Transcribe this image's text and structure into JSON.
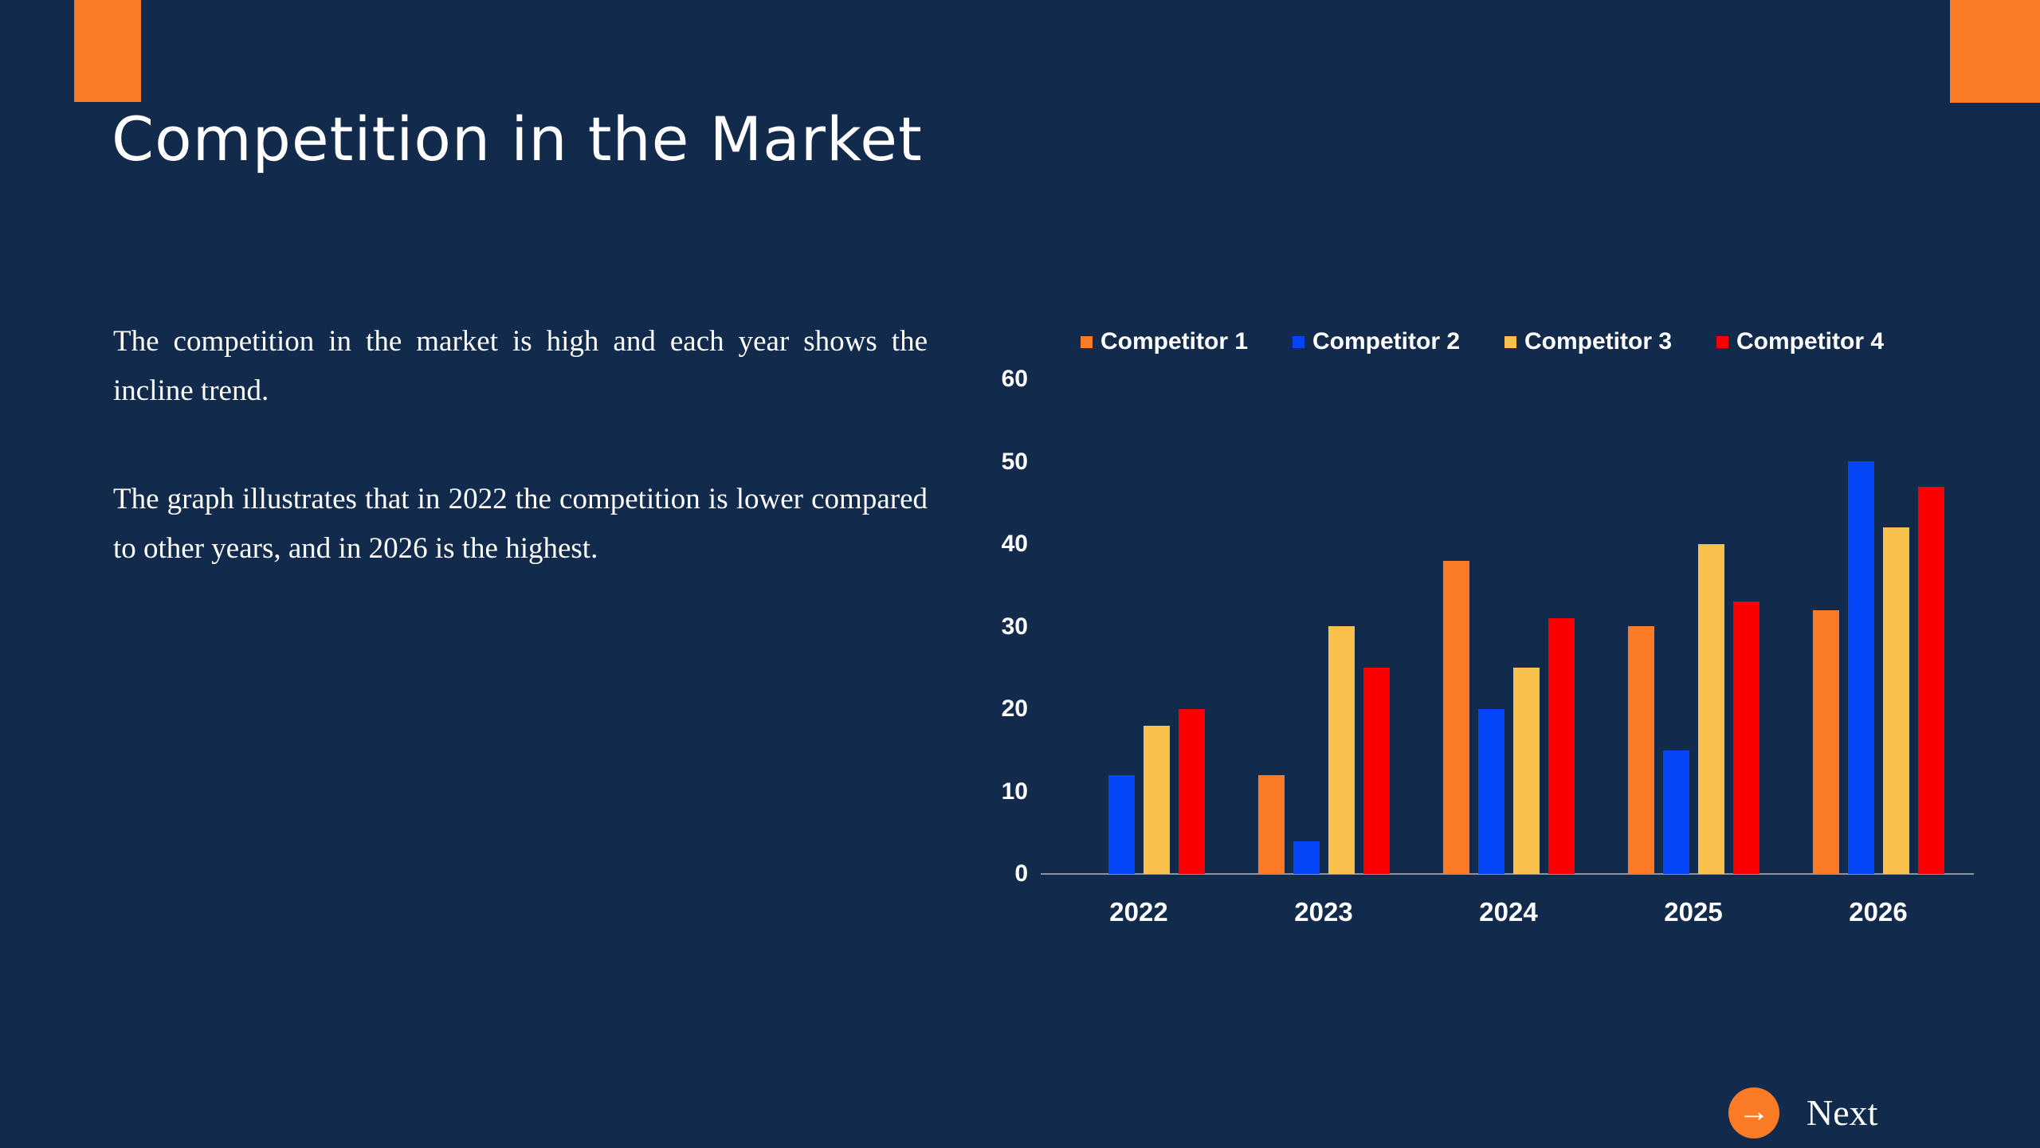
{
  "slide": {
    "title": "Competition in the Market",
    "paragraphs": [
      "The competition in the market is high and each year shows the incline trend.",
      "The graph illustrates that in 2022 the competition is lower compared to other years, and in 2026 is the highest."
    ],
    "next_label": "Next",
    "next_arrow_icon": "→"
  },
  "colors": {
    "background": "#122A4C",
    "accent_orange": "#FB7B27",
    "text_white": "#FFFFFF",
    "axis_gray": "#8A93A3"
  },
  "chart_data": {
    "type": "bar",
    "title": "",
    "xlabel": "",
    "ylabel": "",
    "categories": [
      "2022",
      "2023",
      "2024",
      "2025",
      "2026"
    ],
    "series": [
      {
        "name": "Competitor 1",
        "color": "#FB7B27",
        "values": [
          0,
          12,
          38,
          30,
          32
        ]
      },
      {
        "name": "Competitor 2",
        "color": "#0445F7",
        "values": [
          12,
          4,
          20,
          15,
          50
        ]
      },
      {
        "name": "Competitor 3",
        "color": "#F9C14B",
        "values": [
          18,
          30,
          25,
          40,
          42
        ]
      },
      {
        "name": "Competitor 4",
        "color": "#FA0000",
        "values": [
          20,
          25,
          31,
          33,
          47
        ]
      }
    ],
    "ylim": [
      0,
      60
    ],
    "yticks": [
      0,
      10,
      20,
      30,
      40,
      50,
      60
    ],
    "legend_position": "top",
    "grid": false
  }
}
